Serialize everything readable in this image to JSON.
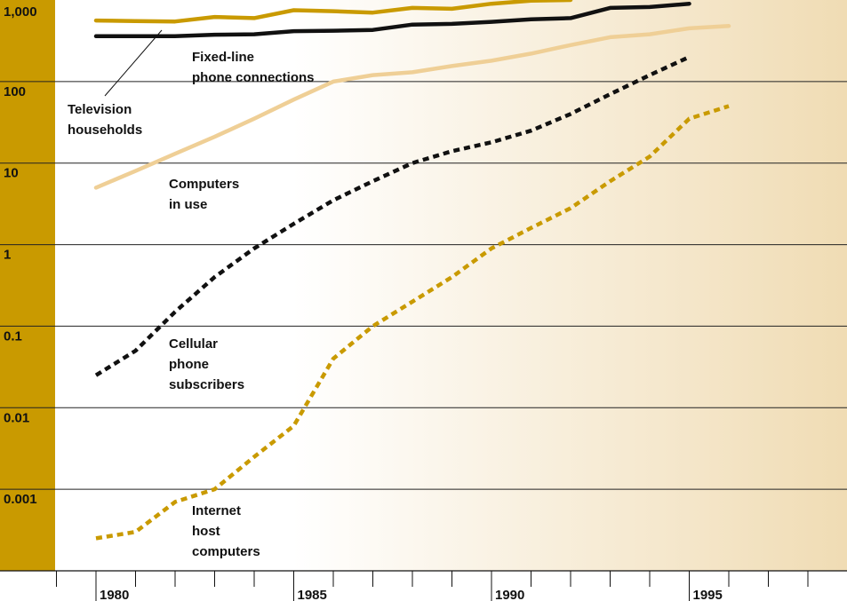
{
  "chart_data": {
    "type": "line",
    "title": "",
    "xlabel": "",
    "ylabel": "",
    "y_scale": "log",
    "ylim": [
      0.0001,
      1000
    ],
    "xlim": [
      1979,
      1999
    ],
    "y_tick_labels": [
      {
        "value": 1000,
        "label": "1,000"
      },
      {
        "value": 100,
        "label": "100"
      },
      {
        "value": 10,
        "label": "10"
      },
      {
        "value": 1,
        "label": "1"
      },
      {
        "value": 0.1,
        "label": "0.1"
      },
      {
        "value": 0.01,
        "label": "0.01"
      },
      {
        "value": 0.001,
        "label": "0.001"
      }
    ],
    "x_tick_labels": [
      {
        "value": 1980,
        "label": "1980"
      },
      {
        "value": 1985,
        "label": "1985"
      },
      {
        "value": 1990,
        "label": "1990"
      },
      {
        "value": 1995,
        "label": "1995"
      }
    ],
    "x_minor_ticks": [
      1979,
      1980,
      1981,
      1982,
      1983,
      1984,
      1985,
      1986,
      1987,
      1988,
      1989,
      1990,
      1991,
      1992,
      1993,
      1994,
      1995,
      1996,
      1997,
      1998,
      1999
    ],
    "grid": true,
    "colors": {
      "axis_band": "#c99a00",
      "gradient_start": "#ffffff",
      "gradient_end": "#f0dcb4",
      "grid_line": "#222222"
    },
    "series": [
      {
        "name": "Television households",
        "color": "#c99a00",
        "style": "solid",
        "x": [
          1980,
          1981,
          1982,
          1983,
          1984,
          1985,
          1986,
          1987,
          1988,
          1989,
          1990,
          1991,
          1992
        ],
        "y": [
          560,
          550,
          545,
          620,
          600,
          750,
          730,
          700,
          800,
          780,
          900,
          980,
          1000
        ]
      },
      {
        "name": "Fixed-line phone connections",
        "color": "#111111",
        "style": "solid",
        "x": [
          1980,
          1981,
          1982,
          1983,
          1984,
          1985,
          1986,
          1987,
          1988,
          1989,
          1990,
          1991,
          1992,
          1993,
          1994,
          1995
        ],
        "y": [
          360,
          360,
          360,
          375,
          380,
          415,
          420,
          430,
          500,
          510,
          540,
          580,
          600,
          800,
          820,
          900
        ]
      },
      {
        "name": "Computers in use",
        "color": "#efcf96",
        "style": "solid",
        "x": [
          1980,
          1981,
          1982,
          1983,
          1984,
          1985,
          1986,
          1987,
          1988,
          1989,
          1990,
          1991,
          1992,
          1993,
          1994,
          1995,
          1996
        ],
        "y": [
          5,
          8,
          13,
          21,
          35,
          60,
          100,
          120,
          130,
          155,
          180,
          220,
          280,
          350,
          380,
          450,
          480
        ]
      },
      {
        "name": "Cellular phone subscribers",
        "color": "#111111",
        "style": "dashed",
        "x": [
          1980,
          1981,
          1982,
          1983,
          1984,
          1985,
          1986,
          1987,
          1988,
          1989,
          1990,
          1991,
          1992,
          1993,
          1994,
          1995
        ],
        "y": [
          0.025,
          0.05,
          0.15,
          0.4,
          0.9,
          1.8,
          3.5,
          6,
          10,
          14,
          18,
          25,
          40,
          70,
          120,
          200
        ]
      },
      {
        "name": "Internet host computers",
        "color": "#c99a00",
        "style": "dashed",
        "x": [
          1980,
          1981,
          1982,
          1983,
          1984,
          1985,
          1986,
          1987,
          1988,
          1989,
          1990,
          1991,
          1992,
          1993,
          1994,
          1995,
          1996
        ],
        "y": [
          0.00025,
          0.0003,
          0.0007,
          0.001,
          0.0025,
          0.006,
          0.04,
          0.1,
          0.2,
          0.4,
          0.9,
          1.6,
          2.8,
          6,
          12,
          35,
          50
        ]
      }
    ],
    "annotations": [
      {
        "lines": [
          "Television",
          "households"
        ],
        "series": "Television households"
      },
      {
        "lines": [
          "Fixed-line",
          "phone connections"
        ],
        "series": "Fixed-line phone connections"
      },
      {
        "lines": [
          "Computers",
          "in use"
        ],
        "series": "Computers in use"
      },
      {
        "lines": [
          "Cellular",
          "phone",
          "subscribers"
        ],
        "series": "Cellular phone subscribers"
      },
      {
        "lines": [
          "Internet",
          "host",
          "computers"
        ],
        "series": "Internet host computers"
      }
    ]
  }
}
